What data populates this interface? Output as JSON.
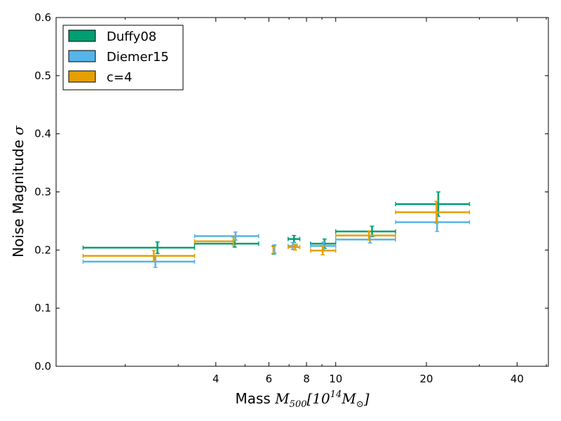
{
  "chart_data": {
    "type": "errorbar",
    "title": "",
    "xlabel": {
      "prefix": "Mass ",
      "math": "M",
      "sub": "500",
      "rest": "[10",
      "sup": "14",
      "rest2": "M",
      "sub2": "⊙",
      "close": "]"
    },
    "ylabel": {
      "prefix": "Noise Magnitude ",
      "math": "σ"
    },
    "x_scale": "log",
    "xlim": [
      1.18,
      50.8
    ],
    "ylim": [
      0.0,
      0.6
    ],
    "x_ticks": [
      4,
      6,
      8,
      10,
      20,
      40
    ],
    "y_ticks": [
      0.0,
      0.1,
      0.2,
      0.3,
      0.4,
      0.5,
      0.6
    ],
    "legend": {
      "location": "top-left",
      "entries": [
        "Duffy08",
        "Diemer15",
        "c=4"
      ]
    },
    "grid": false,
    "series": [
      {
        "name": "Duffy08",
        "color": "#009e73",
        "points": [
          {
            "x": 2.56,
            "xmin": 1.45,
            "xmax": 3.4,
            "y": 0.204,
            "yerr": 0.01
          },
          {
            "x": 4.62,
            "xmin": 3.4,
            "xmax": 5.55,
            "y": 0.211,
            "yerr": 0.006
          },
          {
            "x": 6.23,
            "xmin": 6.23,
            "xmax": 6.23,
            "y": 0.2,
            "yerr": 0.007
          },
          {
            "x": 7.27,
            "xmin": 6.95,
            "xmax": 7.6,
            "y": 0.219,
            "yerr": 0.006
          },
          {
            "x": 9.18,
            "xmin": 8.25,
            "xmax": 10.0,
            "y": 0.211,
            "yerr": 0.008
          },
          {
            "x": 13.2,
            "xmin": 10.0,
            "xmax": 15.8,
            "y": 0.232,
            "yerr": 0.009
          },
          {
            "x": 21.9,
            "xmin": 15.8,
            "xmax": 27.8,
            "y": 0.279,
            "yerr": 0.021
          }
        ]
      },
      {
        "name": "Diemer15",
        "color": "#56b4e9",
        "points": [
          {
            "x": 2.52,
            "xmin": 1.45,
            "xmax": 3.4,
            "y": 0.18,
            "yerr": 0.01
          },
          {
            "x": 4.65,
            "xmin": 3.4,
            "xmax": 5.55,
            "y": 0.224,
            "yerr": 0.007
          },
          {
            "x": 6.26,
            "xmin": 6.26,
            "xmax": 6.26,
            "y": 0.202,
            "yerr": 0.007
          },
          {
            "x": 7.2,
            "xmin": 6.95,
            "xmax": 7.45,
            "y": 0.207,
            "yerr": 0.006
          },
          {
            "x": 9.12,
            "xmin": 8.25,
            "xmax": 10.0,
            "y": 0.207,
            "yerr": 0.007
          },
          {
            "x": 13.0,
            "xmin": 10.0,
            "xmax": 15.8,
            "y": 0.218,
            "yerr": 0.006
          },
          {
            "x": 21.7,
            "xmin": 15.8,
            "xmax": 27.8,
            "y": 0.248,
            "yerr": 0.016
          }
        ]
      },
      {
        "name": "c=4",
        "color": "#e69f00",
        "points": [
          {
            "x": 2.49,
            "xmin": 1.45,
            "xmax": 3.4,
            "y": 0.19,
            "yerr": 0.009
          },
          {
            "x": 4.58,
            "xmin": 3.4,
            "xmax": 4.58,
            "y": 0.215,
            "yerr": 0.007
          },
          {
            "x": 6.21,
            "xmin": 6.21,
            "xmax": 6.21,
            "y": 0.2,
            "yerr": 0.006
          },
          {
            "x": 7.33,
            "xmin": 6.95,
            "xmax": 7.6,
            "y": 0.205,
            "yerr": 0.005
          },
          {
            "x": 9.05,
            "xmin": 8.25,
            "xmax": 10.0,
            "y": 0.199,
            "yerr": 0.007
          },
          {
            "x": 12.9,
            "xmin": 10.0,
            "xmax": 15.8,
            "y": 0.225,
            "yerr": 0.008
          },
          {
            "x": 21.6,
            "xmin": 15.8,
            "xmax": 27.8,
            "y": 0.265,
            "yerr": 0.019
          }
        ]
      }
    ]
  }
}
